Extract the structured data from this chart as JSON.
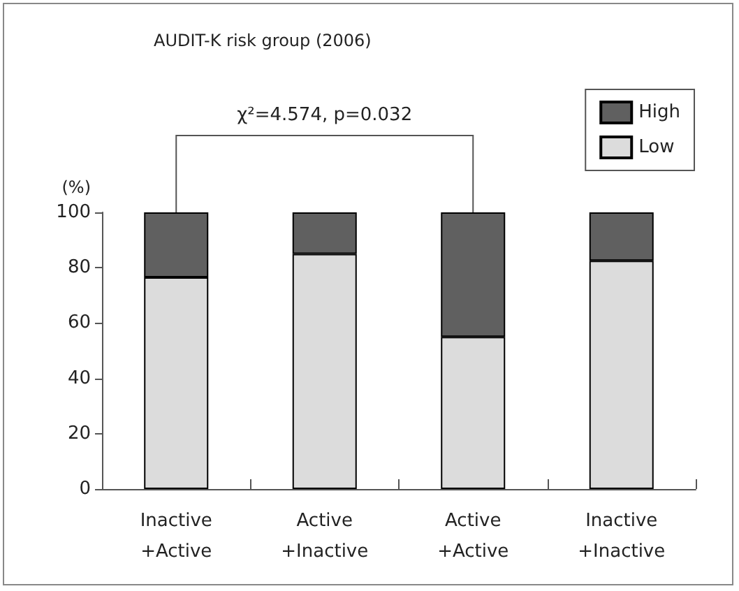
{
  "chart_data": {
    "type": "bar",
    "title": "AUDIT-K risk group (2006)",
    "ylabel": "(%)",
    "categories": [
      "Inactive\n+Active",
      "Active\n+Inactive",
      "Active\n+Active",
      "Inactive\n+Inactive"
    ],
    "stacked": true,
    "series": [
      {
        "name": "Low",
        "color": "#dcdcdc",
        "values": [
          76.5,
          85,
          55,
          82.5
        ]
      },
      {
        "name": "High",
        "color": "#606060",
        "values": [
          23.5,
          15,
          45,
          17.5
        ]
      }
    ],
    "ylim": [
      0,
      100
    ],
    "yticks": [
      0,
      20,
      40,
      60,
      80,
      100
    ],
    "annotations": [
      "χ²=4.574, p=0.032"
    ],
    "grid": false,
    "legend": "top right"
  }
}
